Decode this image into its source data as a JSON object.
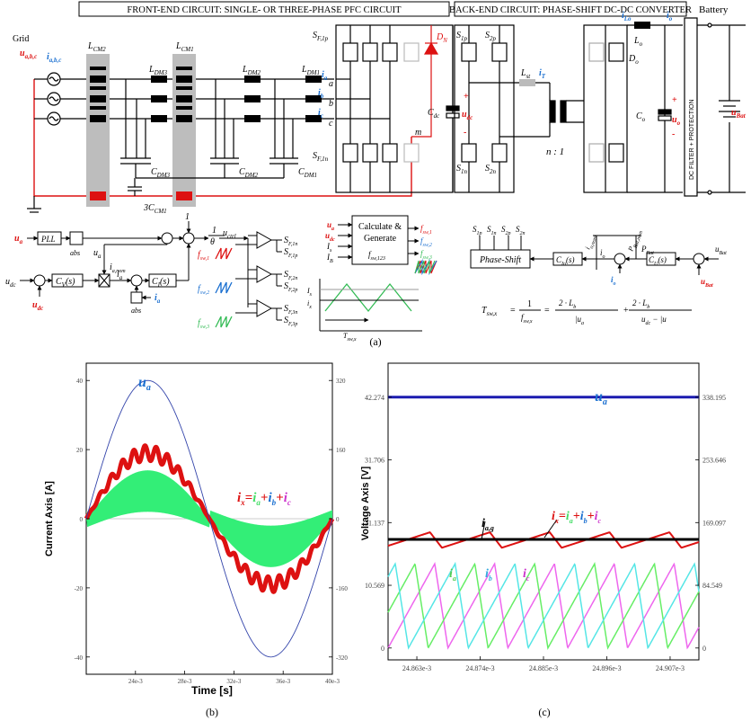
{
  "header": {
    "front_end": "FRONT-END CIRCUIT: SINGLE- OR THREE-PHASE PFC CIRCUIT",
    "back_end": "BACK-END CIRCUIT: PHASE-SHIFT DC-DC CONVERTER"
  },
  "circuit": {
    "grid": "Grid",
    "battery": "Battery",
    "u_abc": "u",
    "u_abc_sub": "a,b,c",
    "i_abc": "i",
    "i_abc_sub": "a,b,c",
    "l_cm2": "L",
    "l_cm2_sub": "CM2",
    "l_dm3": "L",
    "l_dm3_sub": "DM3",
    "l_cm1": "L",
    "l_cm1_sub": "CM1",
    "l_dm2": "L",
    "l_dm2_sub": "DM2",
    "l_dm1": "L",
    "l_dm1_sub": "DM1",
    "c_dm3": "C",
    "c_dm3_sub": "DM3",
    "c_dm2": "C",
    "c_dm2_sub": "DM2",
    "c_dm1": "C",
    "c_dm1_sub": "DM1",
    "c_cm": "3C",
    "c_cm_sub": "CM1",
    "node_a": "a",
    "node_b": "b",
    "node_c": "c",
    "node_m": "m",
    "ia": "i",
    "ia_sub": "a",
    "ib": "i",
    "ib_sub": "b",
    "ic": "i",
    "ic_sub": "c",
    "sf_1p": "S",
    "sf_1p_sub": "F,1p",
    "sf_1n": "S",
    "sf_1n_sub": "F,1n",
    "dn": "D",
    "dn_sub": "N",
    "cdc": "C",
    "cdc_sub": "dc",
    "udc": "u",
    "udc_sub": "dc",
    "s1p": "S",
    "s1p_sub": "1p",
    "s2p": "S",
    "s2p_sub": "2p",
    "s1n": "S",
    "s1n_sub": "1n",
    "s2n": "S",
    "s2n_sub": "2n",
    "lst": "L",
    "lst_sub": "st",
    "it": "i",
    "it_sub": "T",
    "ratio": "n : 1",
    "ilo": "i",
    "ilo_sub": "Lo",
    "lo": "L",
    "lo_sub": "o",
    "io": "i",
    "io_sub": "o",
    "do": "D",
    "do_sub": "o",
    "co": "C",
    "co_sub": "o",
    "uo": "u",
    "uo_sub": "o",
    "ubat": "u",
    "ubat_sub": "Bat",
    "dc_filter": "DC FILTER + PROTECTION"
  },
  "control": {
    "pll": "PLL",
    "abs": "abs",
    "ua_in": "u",
    "ua_in_sub": "a",
    "udc_ref": "u",
    "udc_ref_sub": "dc",
    "udc_fb": "u",
    "udc_fb_sub": "dc",
    "cv": "C",
    "cv_sub": "V",
    "cv_arg": "(s)",
    "ci": "C",
    "ci_sub": "I",
    "ci_arg": "(s)",
    "ipfc": "i",
    "ipfc_sub": "a,nom",
    "ia_star": "i",
    "ia_star_sub": "a",
    "ua_hat": "u",
    "ua_hat_sub": "a",
    "ia_fb": "i",
    "ia_fb_sub": "a",
    "one": "1",
    "theta": "θ",
    "one_over": "1",
    "uctrl": "u",
    "uctrl_sub": "ctrl",
    "fsw1": "f",
    "fsw1_sub": "sw,1",
    "fsw2": "f",
    "fsw2_sub": "sw,2",
    "fsw3": "f",
    "fsw3_sub": "sw,3",
    "sf1n": "S",
    "sf1n_sub": "F,1n",
    "sf1p": "S",
    "sf1p_sub": "F,1p",
    "sf2n": "S",
    "sf2n_sub": "F,2n",
    "sf2p": "S",
    "sf2p_sub": "F,2p",
    "sf3n": "S",
    "sf3n_sub": "F,3n",
    "sf3p": "S",
    "sf3p_sub": "F,3p",
    "is_star": "I",
    "is_star_sub": "s",
    "ix_star": "i",
    "ix_star_sub": "x",
    "tsw": "T",
    "tsw_sub": "sw,x",
    "calc_line1": "Calculate &",
    "calc_line2": "Generate",
    "calc_f": "f",
    "calc_f_sub": "sw,123",
    "calc_in1": "u",
    "calc_in1_sub": "a",
    "calc_in2": "u",
    "calc_in2_sub": "dc",
    "calc_in3": "I",
    "calc_in3_sub": "s",
    "calc_in4": "I",
    "calc_in4_sub": "B",
    "out_f1": "f",
    "out_f1_sub": "sw,1",
    "out_f2": "f",
    "out_f2_sub": "sw,2",
    "out_f3": "f",
    "out_f3_sub": "sw,3",
    "ps_out1": "S",
    "ps_out1_sub": "1p",
    "ps_out2": "S",
    "ps_out2_sub": "1n",
    "ps_out3": "S",
    "ps_out3_sub": "2p",
    "ps_out4": "S",
    "ps_out4_sub": "2n",
    "phase_shift": "Phase-Shift",
    "cio": "C",
    "cio_sub": "Io",
    "cio_arg": "(s)",
    "cuo": "C",
    "cuo_sub": "U",
    "cuo_arg": "(s)",
    "io_nom": "i",
    "io_nom_sub": "o,nom",
    "io_star": "i",
    "io_star_sub": "o",
    "io_fb": "i",
    "io_fb_sub": "o",
    "pbat": "P",
    "pbat_sub": "Bat,nom",
    "pbat_star": "P",
    "pbat_star_sub": "Bat",
    "ubat_star": "u",
    "ubat_star_sub": "Bat",
    "ubat_fb": "u",
    "ubat_fb_sub": "Bat",
    "formula_lhs": "T",
    "formula_lhs_sub": "sw,x",
    "formula_eq": "=",
    "formula_frac": "1",
    "formula_frac_den": "f",
    "formula_frac_den_sub": "sw,x",
    "formula_num": "2 · L",
    "formula_num_sub": "b",
    "formula_den1": "|u",
    "formula_den1_sub": "a",
    "formula_den2": "u",
    "formula_den2_sub": "dc",
    "formula_den2_tail": " − |u",
    "formula_plus": "+",
    "figure_label": "(a)"
  },
  "plot_b": {
    "label": "(b)",
    "xlabel": "Time [s]",
    "ylabel": "Current Axis [A]",
    "ua_label": "u",
    "ua_label_sub": "a",
    "ix_eq_i": "i",
    "ix_eq_sub": "x",
    "ix_eq_eq": "=",
    "ix_eq_a": "i",
    "ix_eq_a_sub": "a",
    "ix_eq_b": "i",
    "ix_eq_b_sub": "b",
    "ix_eq_c": "i",
    "ix_eq_c_sub": "c",
    "plus": "+",
    "x_ticks": [
      "24e-3",
      "28e-3",
      "32e-3",
      "36e-3",
      "40e-3"
    ],
    "y_ticks_left": [
      "40",
      "20",
      "0",
      "-20",
      "-40"
    ],
    "y_ticks_right": [
      "320",
      "160",
      "0",
      "-160",
      "-320"
    ]
  },
  "plot_c": {
    "label": "(c)",
    "ylabel": "Voltage Axis [V]",
    "ua_label": "u",
    "ua_label_sub": "a",
    "iag_label": "i",
    "iag_label_sub": "a,g",
    "ia_label": "i",
    "ia_label_sub": "a",
    "ib_label": "i",
    "ib_label_sub": "b",
    "ic_label": "i",
    "ic_label_sub": "c",
    "x_ticks": [
      "24.863e-3",
      "24.874e-3",
      "24.885e-3",
      "24.896e-3",
      "24.907e-3"
    ],
    "y_ticks_left": [
      "42.274",
      "31.706",
      "21.137",
      "10.569",
      "0"
    ],
    "y_ticks_right": [
      "338.195",
      "253.646",
      "169.097",
      "84.549",
      "0"
    ]
  },
  "colors": {
    "red": "#dd1111",
    "blue": "#1a6fd0",
    "navy": "#1b1bb0",
    "green": "#33ee77",
    "magenta": "#dd55dd",
    "cyan": "#55dddd",
    "lightgreen": "#66dd66",
    "gray": "#bdbdbd"
  },
  "chart_data": [
    {
      "type": "line",
      "title": "",
      "xlabel": "Time [s]",
      "ylabel": "Current Axis [A]",
      "xlim": [
        0.02,
        0.04
      ],
      "ylim": [
        -45,
        45
      ],
      "y2lim": [
        -360,
        360
      ],
      "grid": false,
      "series": [
        {
          "name": "u_a",
          "values_desc": "",
          "x": [
            0.02,
            0.025,
            0.03,
            0.035,
            0.04
          ],
          "y": [
            0,
            320,
            0,
            -320,
            0
          ]
        },
        {
          "name": "i_x = i_a + i_b + i_c",
          "x": [
            0.02,
            0.025,
            0.03,
            0.035,
            0.04
          ],
          "y": [
            0,
            19,
            0,
            -19,
            0
          ]
        }
      ]
    },
    {
      "type": "line",
      "title": "",
      "xlabel": "",
      "ylabel": "Voltage Axis [V]",
      "xlim": [
        0.024858,
        0.024912
      ],
      "ylim": [
        -2,
        48
      ],
      "y2lim": [
        -16,
        384
      ],
      "grid": false,
      "series": [
        {
          "name": "u_a",
          "x": [
            0.024858,
            0.024912
          ],
          "y": [
            338.195,
            338.195
          ]
        },
        {
          "name": "i_a,g",
          "x": [
            0.024858,
            0.024912
          ],
          "y": [
            18.5,
            18.5
          ]
        },
        {
          "name": "i_x = i_a + i_b + i_c",
          "x": [
            0.024858,
            0.024912
          ],
          "y": [
            18.5,
            18.5
          ]
        },
        {
          "name": "i_a",
          "x": [
            0.024858,
            0.024912
          ],
          "y": [
            0,
            14
          ]
        },
        {
          "name": "i_b",
          "x": [
            0.024858,
            0.024912
          ],
          "y": [
            0,
            14
          ]
        },
        {
          "name": "i_c",
          "x": [
            0.024858,
            0.024912
          ],
          "y": [
            0,
            14
          ]
        }
      ]
    }
  ]
}
